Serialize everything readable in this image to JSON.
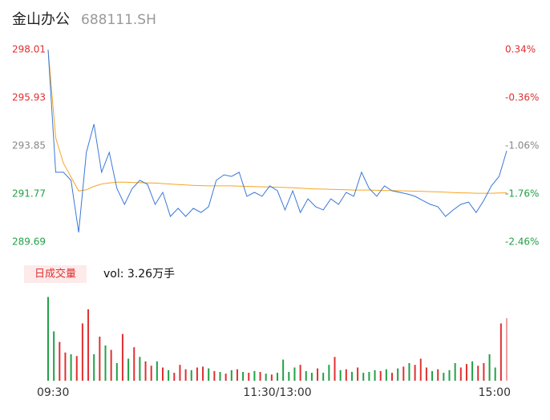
{
  "chart_data": [
    {
      "type": "line",
      "title": "金山办公",
      "subtitle": "688111.SH",
      "x": [
        0,
        4,
        8,
        12,
        16,
        20,
        24,
        28,
        32,
        36,
        40,
        44,
        48,
        52,
        56,
        60,
        64,
        68,
        72,
        76,
        80,
        84,
        88,
        92,
        96,
        100,
        104,
        108,
        112,
        116,
        120,
        124,
        128,
        132,
        136,
        140,
        144,
        148,
        152,
        156,
        160,
        164,
        168,
        172,
        176,
        180,
        184,
        188,
        192,
        196,
        200,
        204,
        208,
        212,
        216,
        220,
        224,
        228,
        232,
        236,
        240
      ],
      "xlim": [
        0,
        240
      ],
      "series": [
        {
          "color": "#3a78d8",
          "values": [
            298.01,
            292.71,
            292.71,
            292.36,
            290.11,
            293.57,
            294.79,
            292.71,
            293.57,
            292.01,
            291.32,
            292.01,
            292.36,
            292.19,
            291.32,
            291.84,
            290.8,
            291.15,
            290.8,
            291.15,
            290.97,
            291.22,
            292.36,
            292.6,
            292.53,
            292.71,
            291.67,
            291.84,
            291.67,
            292.12,
            291.91,
            291.08,
            291.91,
            290.97,
            291.56,
            291.22,
            291.08,
            291.56,
            291.32,
            291.84,
            291.67,
            292.71,
            292.01,
            291.67,
            292.12,
            291.91,
            291.84,
            291.77,
            291.67,
            291.49,
            291.32,
            291.22,
            290.8,
            291.08,
            291.32,
            291.42,
            290.97,
            291.49,
            292.12,
            292.53,
            293.64
          ]
        },
        {
          "color": "#f5a623",
          "values": [
            298.01,
            294.2,
            293.1,
            292.5,
            291.9,
            291.95,
            292.1,
            292.2,
            292.25,
            292.28,
            292.28,
            292.27,
            292.26,
            292.25,
            292.24,
            292.22,
            292.2,
            292.18,
            292.16,
            292.14,
            292.13,
            292.12,
            292.12,
            292.12,
            292.12,
            292.11,
            292.1,
            292.09,
            292.08,
            292.07,
            292.06,
            292.05,
            292.04,
            292.02,
            292.0,
            291.99,
            291.98,
            291.97,
            291.96,
            291.95,
            291.94,
            291.94,
            291.94,
            291.93,
            291.92,
            291.92,
            291.91,
            291.9,
            291.89,
            291.88,
            291.87,
            291.86,
            291.85,
            291.83,
            291.82,
            291.81,
            291.8,
            291.8,
            291.8,
            291.81,
            291.82
          ]
        }
      ],
      "ylim": [
        289.69,
        298.01
      ],
      "yticks": [
        298.01,
        295.93,
        293.85,
        291.77,
        289.69
      ],
      "ytick_colors": [
        "#e03030",
        "#e03030",
        "#888888",
        "#23a047",
        "#23a047"
      ],
      "y2lim": [
        -2.46,
        0.34
      ],
      "y2ticks": [
        {
          "value": 0.34,
          "label": "0.34%"
        },
        {
          "value": -0.36,
          "label": "-0.36%"
        },
        {
          "value": -1.06,
          "label": "-1.06%"
        },
        {
          "value": -1.76,
          "label": "-1.76%"
        },
        {
          "value": -2.46,
          "label": "-2.46%"
        }
      ],
      "y2tick_colors": [
        "#e03030",
        "#e03030",
        "#888888",
        "#23a047",
        "#23a047"
      ],
      "grid": false
    },
    {
      "type": "bar",
      "title": "日成交量",
      "label": "vol: 3.26万手",
      "x": [
        0,
        3,
        6,
        9,
        12,
        15,
        18,
        21,
        24,
        27,
        30,
        33,
        36,
        39,
        42,
        45,
        48,
        51,
        54,
        57,
        60,
        63,
        66,
        69,
        72,
        75,
        78,
        81,
        84,
        87,
        90,
        93,
        96,
        99,
        102,
        105,
        108,
        111,
        114,
        117,
        120,
        123,
        126,
        129,
        132,
        135,
        138,
        141,
        144,
        147,
        150,
        153,
        156,
        159,
        162,
        165,
        168,
        171,
        174,
        177,
        180,
        183,
        186,
        189,
        192,
        195,
        198,
        201,
        204,
        207,
        210,
        213,
        216,
        219,
        222,
        225,
        228,
        231,
        234,
        237,
        240
      ],
      "xlim": [
        0,
        240
      ],
      "xticks": [
        {
          "value": 0,
          "label": "09:30"
        },
        {
          "value": 120,
          "label": "11:30/13:00"
        },
        {
          "value": 240,
          "label": "15:00"
        }
      ],
      "values": [
        950,
        560,
        440,
        320,
        300,
        280,
        650,
        810,
        300,
        500,
        400,
        350,
        200,
        530,
        250,
        380,
        270,
        220,
        170,
        220,
        150,
        120,
        90,
        180,
        130,
        120,
        150,
        160,
        140,
        110,
        100,
        80,
        120,
        130,
        100,
        90,
        110,
        100,
        80,
        70,
        90,
        240,
        100,
        150,
        180,
        110,
        90,
        140,
        90,
        180,
        270,
        120,
        130,
        100,
        150,
        90,
        100,
        120,
        110,
        130,
        90,
        140,
        160,
        200,
        180,
        250,
        150,
        110,
        130,
        90,
        120,
        200,
        150,
        190,
        220,
        170,
        200,
        300,
        150,
        650,
        710
      ],
      "colors": [
        "#23a047",
        "#23a047",
        "#e03030",
        "#e03030",
        "#23a047",
        "#e03030",
        "#e03030",
        "#e03030",
        "#23a047",
        "#e03030",
        "#23a047",
        "#e03030",
        "#23a047",
        "#e03030",
        "#23a047",
        "#e03030",
        "#23a047",
        "#e03030",
        "#e03030",
        "#23a047",
        "#e03030",
        "#23a047",
        "#e03030",
        "#e03030",
        "#e03030",
        "#23a047",
        "#e03030",
        "#e03030",
        "#23a047",
        "#e03030",
        "#23a047",
        "#e03030",
        "#23a047",
        "#e03030",
        "#23a047",
        "#e03030",
        "#23a047",
        "#e03030",
        "#23a047",
        "#e03030",
        "#23a047",
        "#23a047",
        "#23a047",
        "#23a047",
        "#e03030",
        "#23a047",
        "#23a047",
        "#e03030",
        "#23a047",
        "#23a047",
        "#e03030",
        "#23a047",
        "#e03030",
        "#23a047",
        "#e03030",
        "#23a047",
        "#23a047",
        "#23a047",
        "#e03030",
        "#23a047",
        "#e03030",
        "#23a047",
        "#e03030",
        "#23a047",
        "#e03030",
        "#e03030",
        "#e03030",
        "#23a047",
        "#e03030",
        "#23a047",
        "#23a047",
        "#23a047",
        "#e03030",
        "#e03030",
        "#23a047",
        "#e03030",
        "#e03030",
        "#23a047",
        "#23a047",
        "#e03030",
        "#f4a0a0"
      ],
      "ylim": [
        0,
        1000
      ]
    }
  ]
}
